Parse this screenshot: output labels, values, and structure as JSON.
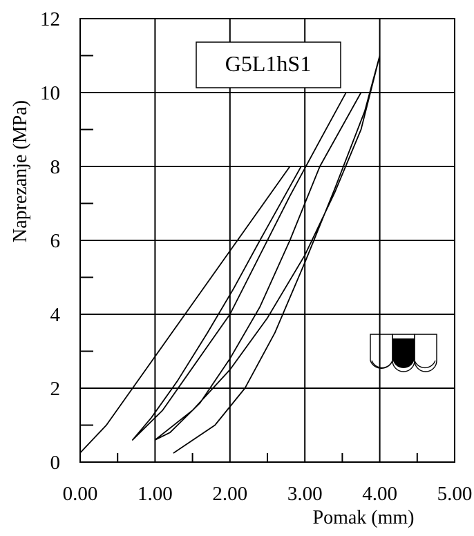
{
  "chart_data": {
    "type": "line",
    "title": "",
    "legend_label": "G5L1hS1",
    "legend_position": "top-center",
    "xlabel": "Pomak (mm)",
    "ylabel": "Naprezanje (MPa)",
    "xlim": [
      0,
      5
    ],
    "ylim": [
      0,
      12
    ],
    "x_ticks": [
      "0.00",
      "1.00",
      "2.00",
      "3.00",
      "4.00",
      "5.00"
    ],
    "y_ticks": [
      "0",
      "2",
      "4",
      "6",
      "8",
      "10",
      "12"
    ],
    "grid": true,
    "minor_ticks": true,
    "line_color": "#000000",
    "curve": [
      [
        0.0,
        0.25
      ],
      [
        0.35,
        1.0
      ],
      [
        0.7,
        2.0
      ],
      [
        1.05,
        3.0
      ],
      [
        1.4,
        4.0
      ],
      [
        1.75,
        5.0
      ],
      [
        2.1,
        6.0
      ],
      [
        2.45,
        7.0
      ],
      [
        2.8,
        8.0
      ],
      [
        2.95,
        8.0
      ],
      [
        2.4,
        6.0
      ],
      [
        2.05,
        4.7
      ],
      [
        1.7,
        3.5
      ],
      [
        1.3,
        2.2
      ],
      [
        0.95,
        1.2
      ],
      [
        0.7,
        0.6
      ],
      [
        1.1,
        1.4
      ],
      [
        1.55,
        2.7
      ],
      [
        2.0,
        4.0
      ],
      [
        2.4,
        5.6
      ],
      [
        2.8,
        7.2
      ],
      [
        3.2,
        8.7
      ],
      [
        3.55,
        10.0
      ],
      [
        3.75,
        10.0
      ],
      [
        3.2,
        8.0
      ],
      [
        2.8,
        6.0
      ],
      [
        2.4,
        4.2
      ],
      [
        2.0,
        2.8
      ],
      [
        1.6,
        1.6
      ],
      [
        1.2,
        0.8
      ],
      [
        1.0,
        0.6
      ],
      [
        1.5,
        1.4
      ],
      [
        2.0,
        2.5
      ],
      [
        2.5,
        3.9
      ],
      [
        3.0,
        5.6
      ],
      [
        3.4,
        7.3
      ],
      [
        3.75,
        9.0
      ],
      [
        4.0,
        11.0
      ],
      [
        3.8,
        9.5
      ],
      [
        3.4,
        7.4
      ],
      [
        3.0,
        5.4
      ],
      [
        2.6,
        3.5
      ],
      [
        2.2,
        2.0
      ],
      [
        1.8,
        1.0
      ],
      [
        1.25,
        0.25
      ]
    ]
  },
  "icon": {
    "name": "specimen-section-icon",
    "fill_color": "#000000"
  }
}
